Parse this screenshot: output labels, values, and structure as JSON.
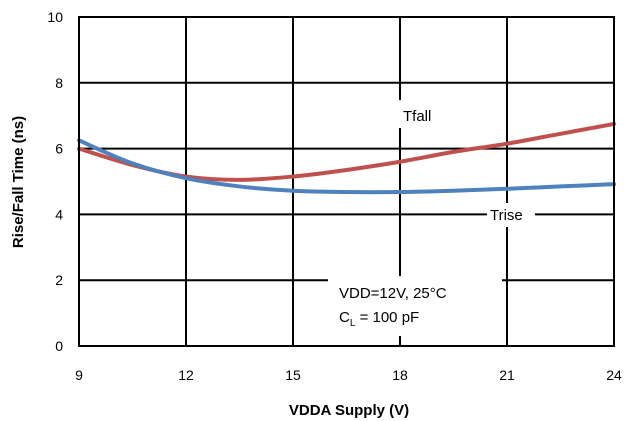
{
  "chart_data": {
    "type": "line",
    "title": "",
    "xlabel": "VDDA Supply (V)",
    "ylabel": "Rise/Fall Time (ns)",
    "xlim": [
      9,
      24
    ],
    "ylim": [
      0,
      10
    ],
    "x_ticks": [
      "9",
      "12",
      "15",
      "18",
      "21",
      "24"
    ],
    "y_ticks": [
      "0",
      "2",
      "4",
      "6",
      "8",
      "10"
    ],
    "grid": true,
    "colors": {
      "Tfall": "#c0504d",
      "Trise": "#4f81bd"
    },
    "series": [
      {
        "name": "Tfall",
        "x": [
          9,
          10.5,
          12,
          13.5,
          15,
          16.5,
          18,
          19.5,
          21,
          22.5,
          24
        ],
        "y": [
          6.0,
          5.5,
          5.15,
          5.05,
          5.15,
          5.35,
          5.6,
          5.9,
          6.15,
          6.45,
          6.75
        ]
      },
      {
        "name": "Trise",
        "x": [
          9,
          10.5,
          12,
          13.5,
          15,
          16.5,
          18,
          19.5,
          21,
          22.5,
          24
        ],
        "y": [
          6.25,
          5.55,
          5.1,
          4.85,
          4.72,
          4.68,
          4.68,
          4.72,
          4.78,
          4.85,
          4.92
        ]
      }
    ],
    "annotations": {
      "tfall_label": "Tfall",
      "trise_label": "Trise",
      "condition_line1": "VDD=12V, 25°C",
      "cl_main": "C",
      "cl_sub": "L",
      "cl_rest": " = 100 pF"
    }
  }
}
